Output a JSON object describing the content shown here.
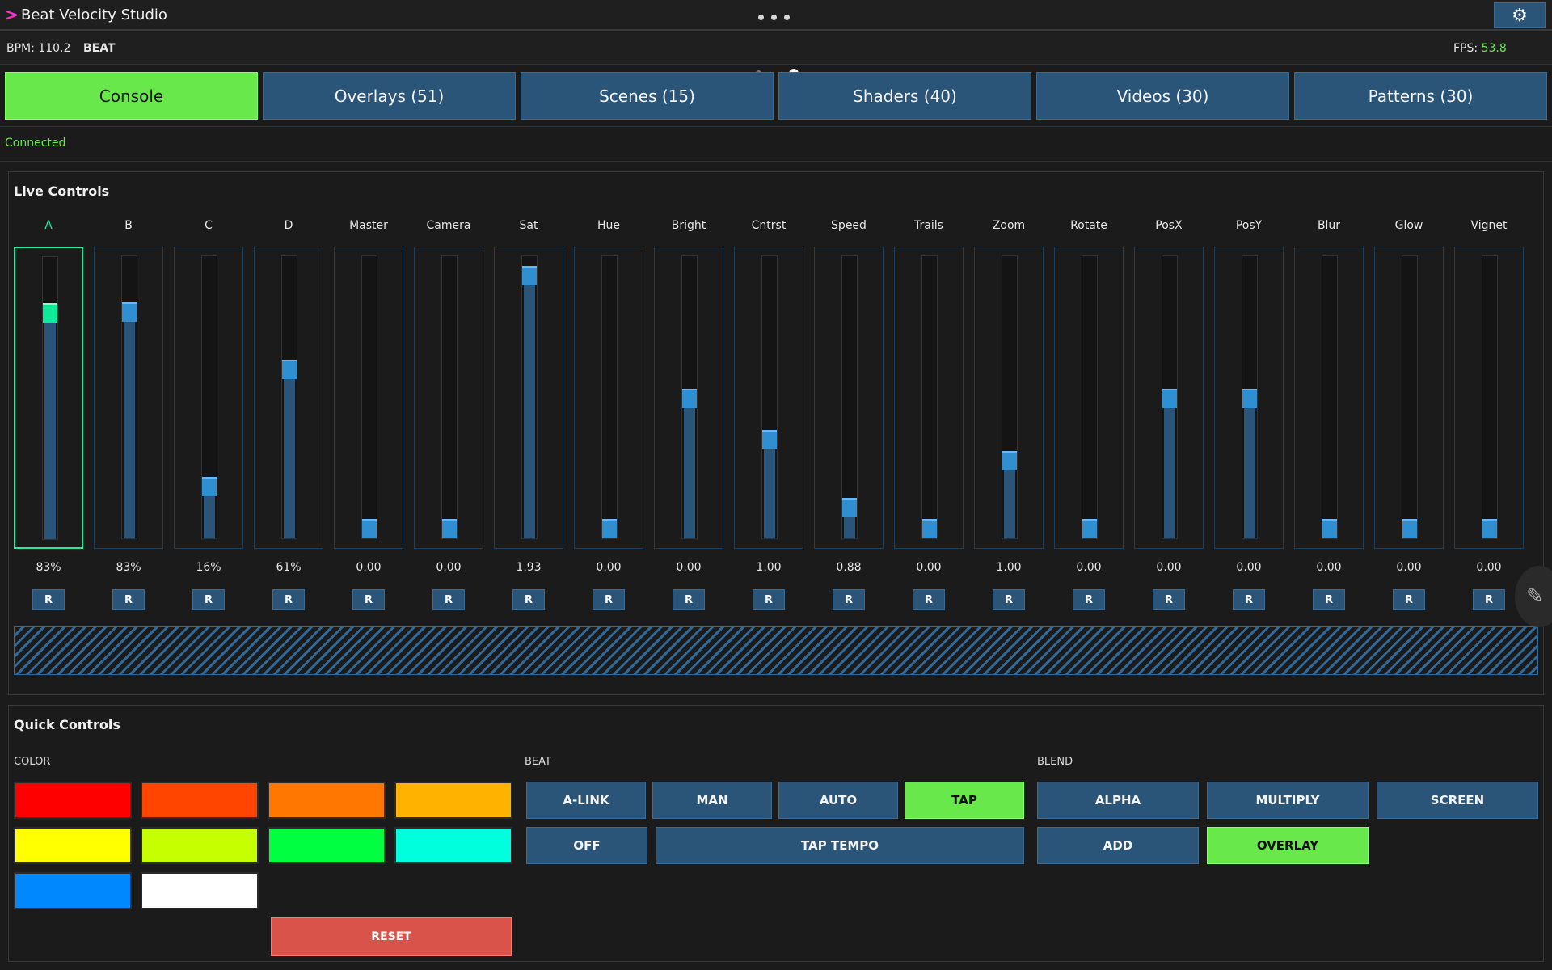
{
  "app": {
    "title": "Beat Velocity Studio",
    "prompt": ">",
    "settings_icon": "gear-icon"
  },
  "status": {
    "bpm": "BPM: 110.2",
    "beat": "BEAT",
    "fps_label": "FPS:",
    "fps_value": "53.8"
  },
  "tabs": [
    {
      "label": "Console",
      "active": true
    },
    {
      "label": "Overlays (51)",
      "active": false
    },
    {
      "label": "Scenes (15)",
      "active": false
    },
    {
      "label": "Shaders (40)",
      "active": false
    },
    {
      "label": "Videos (30)",
      "active": false
    },
    {
      "label": "Patterns (30)",
      "active": false
    }
  ],
  "connection": "Connected",
  "live": {
    "title": "Live Controls",
    "reset_label": "R",
    "channels": [
      {
        "name": "A",
        "value": "83%",
        "level": 0.83,
        "selected": true
      },
      {
        "name": "B",
        "value": "83%",
        "level": 0.83
      },
      {
        "name": "C",
        "value": "16%",
        "level": 0.16
      },
      {
        "name": "D",
        "value": "61%",
        "level": 0.61
      },
      {
        "name": "Master",
        "value": "0.00",
        "level": 0.0
      },
      {
        "name": "Camera",
        "value": "0.00",
        "level": 0.0
      },
      {
        "name": "Sat",
        "value": "1.93",
        "level": 0.97
      },
      {
        "name": "Hue",
        "value": "0.00",
        "level": 0.0
      },
      {
        "name": "Bright",
        "value": "0.00",
        "level": 0.5
      },
      {
        "name": "Cntrst",
        "value": "1.00",
        "level": 0.34
      },
      {
        "name": "Speed",
        "value": "0.88",
        "level": 0.08
      },
      {
        "name": "Trails",
        "value": "0.00",
        "level": 0.0
      },
      {
        "name": "Zoom",
        "value": "1.00",
        "level": 0.26
      },
      {
        "name": "Rotate",
        "value": "0.00",
        "level": 0.0
      },
      {
        "name": "PosX",
        "value": "0.00",
        "level": 0.5
      },
      {
        "name": "PosY",
        "value": "0.00",
        "level": 0.5
      },
      {
        "name": "Blur",
        "value": "0.00",
        "level": 0.0
      },
      {
        "name": "Glow",
        "value": "0.00",
        "level": 0.0
      },
      {
        "name": "Vignet",
        "value": "0.00",
        "level": 0.0
      }
    ]
  },
  "quick": {
    "title": "Quick Controls",
    "color_label": "COLOR",
    "colors": [
      "#ff0000",
      "#ff4500",
      "#ff7700",
      "#ffb300",
      "#ffff00",
      "#c6ff00",
      "#00ff40",
      "#00ffdd",
      "#0088ff",
      "#ffffff"
    ],
    "reset": "RESET",
    "beat_label": "BEAT",
    "beat_row1": [
      {
        "label": "A-LINK",
        "on": false
      },
      {
        "label": "MAN",
        "on": false
      },
      {
        "label": "AUTO",
        "on": false
      },
      {
        "label": "TAP",
        "on": true
      }
    ],
    "beat_off": "OFF",
    "beat_tap_tempo": "TAP TEMPO",
    "blend_label": "BLEND",
    "blend": [
      {
        "label": "ALPHA",
        "on": false
      },
      {
        "label": "MULTIPLY",
        "on": false
      },
      {
        "label": "SCREEN",
        "on": false
      },
      {
        "label": "ADD",
        "on": false
      },
      {
        "label": "OVERLAY",
        "on": true
      }
    ]
  }
}
